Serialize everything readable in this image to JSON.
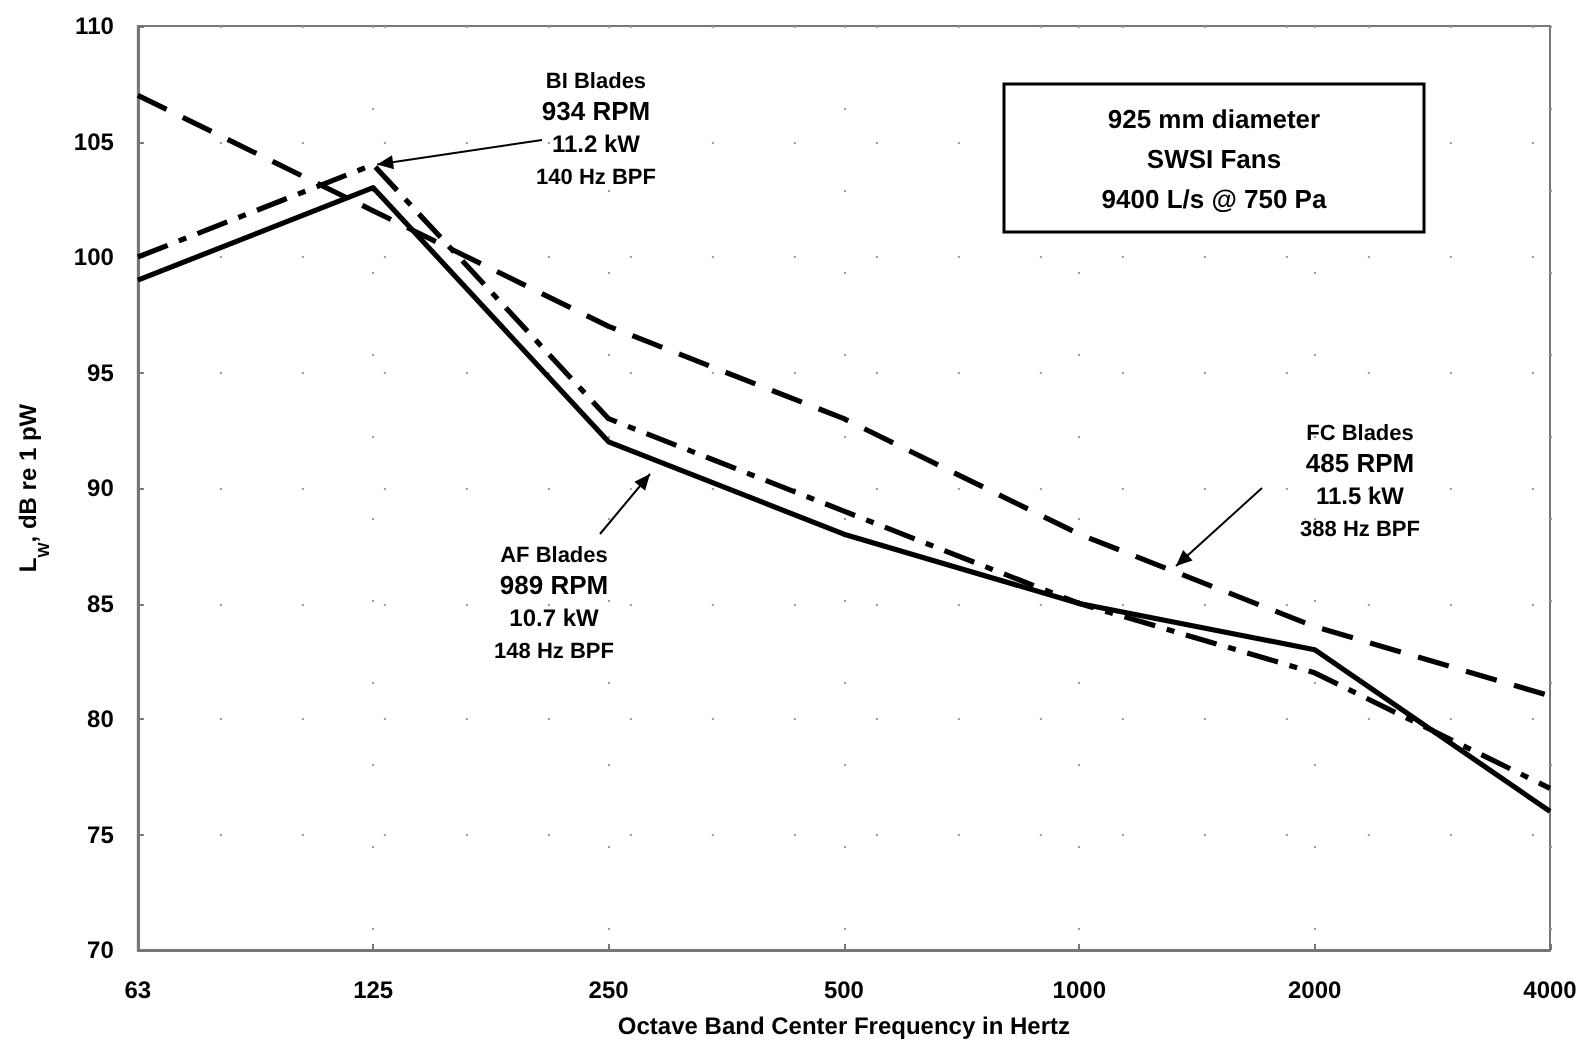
{
  "chart_data": {
    "type": "line",
    "xlabel": "Octave Band Center Frequency in Hertz",
    "ylabel": "L$_{W}$, dB re 1 pW",
    "categories": [
      "63",
      "125",
      "250",
      "500",
      "1000",
      "2000",
      "4000"
    ],
    "series": [
      {
        "color": "#000000",
        "line_style": "solid",
        "values": [
          99,
          103,
          92,
          88,
          85,
          83,
          76
        ]
      },
      {
        "color": "#000000",
        "line_style": "dashdot",
        "values": [
          100,
          104,
          93,
          89,
          85,
          82,
          77
        ]
      },
      {
        "color": "#000000",
        "line_style": "dashed",
        "values": [
          107,
          102,
          97,
          93,
          88,
          84,
          81
        ]
      }
    ],
    "ylim": [
      70,
      110
    ],
    "yticks": [
      70,
      75,
      80,
      85,
      90,
      95,
      100,
      105,
      110
    ],
    "grid": true,
    "marker": "none",
    "annotations": [
      {
        "text": "BI Blades\n934 RPM\n11.2 kW\n140 Hz BPF",
        "x": "125",
        "y": 104
      },
      "AF Blades\n989 RPM\n10.7 kW\n148 Hz BPF",
      "FC Blades\n485 RPM\n11.5 kW\n388 Hz BPF",
      "925 mm diameter\nSWSI Fans\n9400 L/s @ 750 Pa"
    ]
  }
}
